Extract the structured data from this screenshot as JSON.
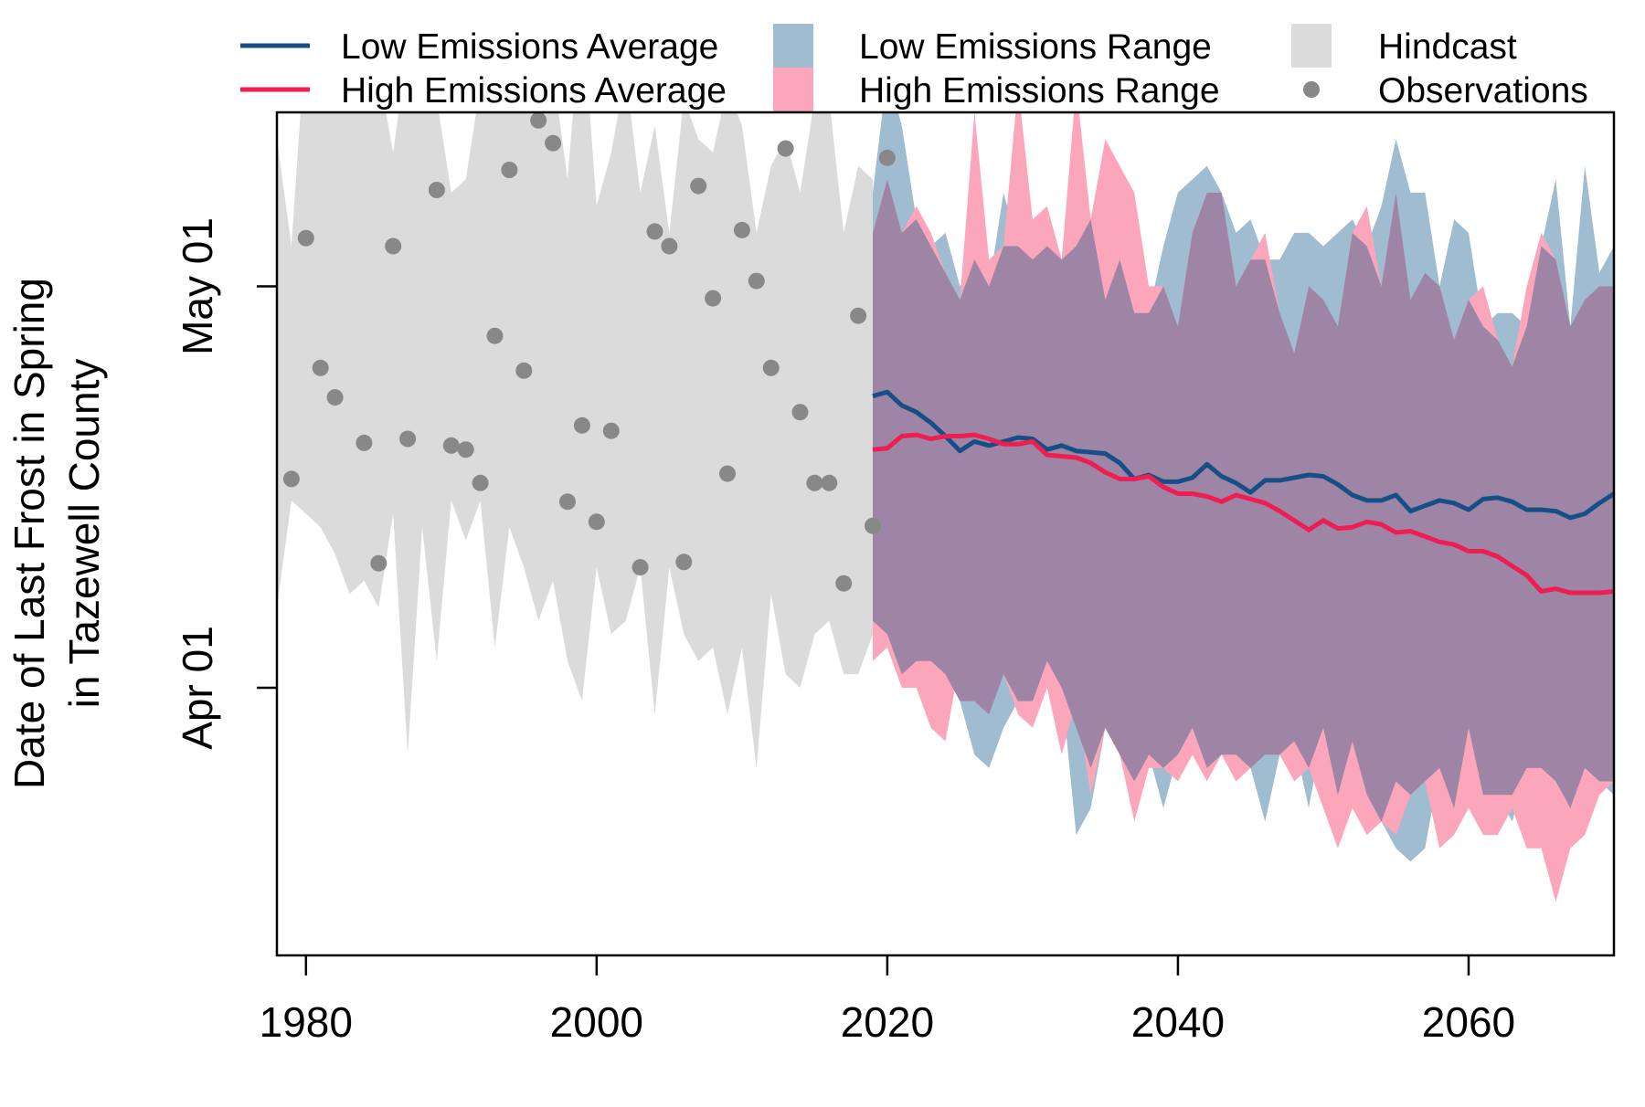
{
  "chart_data": {
    "type": "line",
    "ylabel_line1": "Date of Last Frost in Spring",
    "ylabel_line2": "in Tazewell County",
    "xlabel": "",
    "xlim": [
      1978,
      2070
    ],
    "ylim_day_of_year": [
      71,
      134
    ],
    "x_ticks": [
      1980,
      2000,
      2020,
      2040,
      2060
    ],
    "y_ticks": [
      {
        "label": "Apr 01",
        "day": 91
      },
      {
        "label": "May 01",
        "day": 121
      }
    ],
    "grid": false,
    "legend": {
      "placement": "top",
      "entries": [
        {
          "key": "low_avg",
          "label": "Low Emissions Average",
          "symbol": "line",
          "color": "#164f86"
        },
        {
          "key": "high_avg",
          "label": "High Emissions Average",
          "symbol": "line",
          "color": "#ee1d52"
        },
        {
          "key": "low_range",
          "label": "Low Emissions Range",
          "symbol": "fill",
          "color": "#9fbcd1"
        },
        {
          "key": "high_range",
          "label": "High Emissions Range",
          "symbol": "fill",
          "color": "#fca6bb"
        },
        {
          "key": "hindcast",
          "label": "Hindcast",
          "symbol": "fill",
          "color": "#dbdbdb"
        },
        {
          "key": "obs",
          "label": "Observations",
          "symbol": "point",
          "color": "#888888"
        }
      ]
    },
    "colors": {
      "low": "#164f86",
      "high": "#ee1d52",
      "low_range": "#9fbcd1",
      "high_range": "#fca6bb",
      "overlap": "#9e85a6",
      "hindcast": "#dbdbdb",
      "obs": "#888888"
    },
    "hindcast_range": {
      "x": [
        1978,
        1979,
        1980,
        1981,
        1982,
        1983,
        1984,
        1985,
        1986,
        1987,
        1988,
        1989,
        1990,
        1991,
        1992,
        1993,
        1994,
        1995,
        1996,
        1997,
        1998,
        1999,
        2000,
        2001,
        2002,
        2003,
        2004,
        2005,
        2006,
        2007,
        2008,
        2009,
        2010,
        2011,
        2012,
        2013,
        2014,
        2015,
        2016,
        2017,
        2018,
        2019
      ],
      "upper": [
        132,
        124,
        140,
        134,
        136,
        137,
        135,
        137,
        131,
        139,
        138,
        135,
        128,
        129,
        136,
        139,
        137,
        134,
        134,
        137,
        129,
        142,
        127,
        131,
        137,
        128,
        133,
        125,
        135,
        132,
        131,
        136,
        133,
        125,
        130,
        132,
        128,
        135,
        135,
        125,
        130,
        129
      ],
      "lower": [
        97,
        105,
        104,
        103,
        101,
        98,
        99,
        97,
        104,
        86,
        103,
        93,
        105,
        102,
        105,
        94,
        103,
        100,
        96,
        99,
        93,
        90,
        100,
        95,
        96,
        100,
        89,
        100,
        95,
        93,
        94,
        89,
        94,
        85,
        98,
        92,
        91,
        95,
        96,
        92,
        92,
        95
      ]
    },
    "low_range": {
      "x": [
        2019,
        2020,
        2021,
        2022,
        2023,
        2024,
        2025,
        2026,
        2027,
        2028,
        2029,
        2030,
        2031,
        2032,
        2033,
        2034,
        2035,
        2036,
        2037,
        2038,
        2039,
        2040,
        2041,
        2042,
        2043,
        2044,
        2045,
        2046,
        2047,
        2048,
        2049,
        2050,
        2051,
        2052,
        2053,
        2054,
        2055,
        2056,
        2057,
        2058,
        2059,
        2060,
        2061,
        2062,
        2063,
        2064,
        2065,
        2066,
        2067,
        2068,
        2069,
        2070
      ],
      "upper": [
        128,
        137,
        133,
        126,
        124,
        125,
        121,
        123,
        121,
        128,
        124,
        123,
        125,
        123,
        124,
        126,
        120,
        123,
        119,
        119,
        124,
        128,
        129,
        130,
        128,
        125,
        126,
        123,
        123,
        125,
        125,
        124,
        125,
        126,
        124,
        127,
        132,
        128,
        128,
        121,
        126,
        125,
        118,
        119,
        119,
        118,
        124,
        129,
        118,
        130,
        122,
        124
      ],
      "lower": [
        96,
        95,
        92,
        93,
        93,
        92,
        90,
        86,
        85,
        88,
        90,
        90,
        93,
        91,
        80,
        82,
        88,
        86,
        84,
        86,
        82,
        86,
        88,
        85,
        86,
        86,
        85,
        81,
        86,
        87,
        82,
        88,
        83,
        87,
        83,
        81,
        79,
        78,
        79,
        85,
        82,
        88,
        83,
        83,
        81,
        85,
        85,
        84,
        82,
        85,
        84,
        83
      ]
    },
    "high_range": {
      "x": [
        2019,
        2020,
        2021,
        2022,
        2023,
        2024,
        2025,
        2026,
        2027,
        2028,
        2029,
        2030,
        2031,
        2032,
        2033,
        2034,
        2035,
        2036,
        2037,
        2038,
        2039,
        2040,
        2041,
        2042,
        2043,
        2044,
        2045,
        2046,
        2047,
        2048,
        2049,
        2050,
        2051,
        2052,
        2053,
        2054,
        2055,
        2056,
        2057,
        2058,
        2059,
        2060,
        2061,
        2062,
        2063,
        2064,
        2065,
        2066,
        2067,
        2068,
        2069,
        2070
      ],
      "upper": [
        125,
        129,
        125,
        127,
        125,
        122,
        120,
        134,
        123,
        124,
        136,
        126,
        127,
        123,
        136,
        126,
        132,
        130,
        128,
        121,
        121,
        118,
        125,
        128,
        128,
        121,
        123,
        125,
        119,
        116,
        121,
        120,
        118,
        125,
        127,
        121,
        128,
        120,
        122,
        121,
        117,
        120,
        121,
        117,
        115,
        121,
        125,
        123,
        118,
        120,
        121,
        121
      ],
      "lower": [
        93,
        94,
        91,
        91,
        88,
        87,
        93,
        92,
        90,
        92,
        89,
        88,
        91,
        86,
        90,
        83,
        88,
        86,
        81,
        85,
        85,
        84,
        86,
        84,
        86,
        84,
        85,
        86,
        86,
        84,
        85,
        82,
        79,
        82,
        80,
        81,
        80,
        83,
        84,
        79,
        80,
        82,
        80,
        80,
        82,
        79,
        79,
        75,
        79,
        80,
        83,
        84
      ]
    },
    "overlap_range": {
      "x": [
        2019,
        2020,
        2021,
        2022,
        2023,
        2024,
        2025,
        2026,
        2027,
        2028,
        2029,
        2030,
        2031,
        2032,
        2033,
        2034,
        2035,
        2036,
        2037,
        2038,
        2039,
        2040,
        2041,
        2042,
        2043,
        2044,
        2045,
        2046,
        2047,
        2048,
        2049,
        2050,
        2051,
        2052,
        2053,
        2054,
        2055,
        2056,
        2057,
        2058,
        2059,
        2060,
        2061,
        2062,
        2063,
        2064,
        2065,
        2066,
        2067,
        2068,
        2069,
        2070
      ],
      "upper": [
        125,
        129,
        125,
        126,
        124,
        122,
        120,
        123,
        121,
        124,
        124,
        123,
        124,
        123,
        124,
        126,
        120,
        123,
        119,
        119,
        121,
        118,
        125,
        128,
        128,
        121,
        123,
        123,
        119,
        116,
        121,
        120,
        118,
        125,
        124,
        121,
        128,
        120,
        122,
        121,
        117,
        120,
        118,
        117,
        115,
        118,
        124,
        123,
        118,
        120,
        121,
        121
      ],
      "lower": [
        96,
        95,
        92,
        93,
        93,
        92,
        90,
        90,
        89,
        92,
        90,
        90,
        93,
        91,
        88,
        85,
        88,
        86,
        84,
        86,
        85,
        86,
        88,
        85,
        86,
        86,
        85,
        86,
        86,
        87,
        85,
        88,
        83,
        87,
        83,
        81,
        84,
        83,
        84,
        85,
        82,
        88,
        83,
        83,
        83,
        85,
        85,
        84,
        82,
        85,
        84,
        84
      ]
    },
    "series": [
      {
        "name": "Low Emissions Average",
        "color": "#164f86",
        "x": [
          2019,
          2020,
          2021,
          2022,
          2023,
          2024,
          2025,
          2026,
          2027,
          2028,
          2029,
          2030,
          2031,
          2032,
          2033,
          2034,
          2035,
          2036,
          2037,
          2038,
          2039,
          2040,
          2041,
          2042,
          2043,
          2044,
          2045,
          2046,
          2047,
          2048,
          2049,
          2050,
          2051,
          2052,
          2053,
          2054,
          2055,
          2056,
          2057,
          2058,
          2059,
          2060,
          2061,
          2062,
          2063,
          2064,
          2065,
          2066,
          2067,
          2068,
          2069,
          2070
        ],
        "values": [
          112.8,
          113.1,
          112.1,
          111.6,
          110.8,
          109.8,
          108.7,
          109.4,
          109.1,
          109.4,
          109.7,
          109.6,
          108.8,
          109.1,
          108.7,
          108.6,
          108.5,
          107.8,
          106.6,
          106.9,
          106.4,
          106.4,
          106.7,
          107.7,
          106.8,
          106.3,
          105.6,
          106.5,
          106.5,
          106.7,
          106.9,
          106.8,
          106.2,
          105.4,
          105.0,
          105.0,
          105.4,
          104.2,
          104.6,
          105.0,
          104.8,
          104.3,
          105.1,
          105.2,
          104.9,
          104.3,
          104.3,
          104.2,
          103.7,
          104.0,
          104.8,
          105.5
        ]
      },
      {
        "name": "High Emissions Average",
        "color": "#ee1d52",
        "x": [
          2019,
          2020,
          2021,
          2022,
          2023,
          2024,
          2025,
          2026,
          2027,
          2028,
          2029,
          2030,
          2031,
          2032,
          2033,
          2034,
          2035,
          2036,
          2037,
          2038,
          2039,
          2040,
          2041,
          2042,
          2043,
          2044,
          2045,
          2046,
          2047,
          2048,
          2049,
          2050,
          2051,
          2052,
          2053,
          2054,
          2055,
          2056,
          2057,
          2058,
          2059,
          2060,
          2061,
          2062,
          2063,
          2064,
          2065,
          2066,
          2067,
          2068,
          2069,
          2070
        ],
        "values": [
          108.8,
          108.9,
          109.8,
          109.9,
          109.6,
          109.8,
          109.8,
          109.9,
          109.6,
          109.2,
          109.2,
          109.4,
          108.4,
          108.3,
          108.2,
          107.8,
          107.1,
          106.6,
          106.6,
          106.8,
          106.0,
          105.5,
          105.5,
          105.3,
          104.9,
          105.4,
          105.1,
          104.8,
          104.2,
          103.5,
          102.8,
          103.5,
          102.9,
          103.0,
          103.4,
          103.2,
          102.6,
          102.7,
          102.3,
          101.9,
          101.7,
          101.2,
          101.2,
          100.8,
          100.1,
          99.4,
          98.2,
          98.4,
          98.1,
          98.1,
          98.1,
          98.2
        ]
      }
    ],
    "observations": {
      "x": [
        1979,
        1980,
        1981,
        1982,
        1984,
        1985,
        1986,
        1987,
        1988,
        1989,
        1990,
        1991,
        1992,
        1993,
        1994,
        1995,
        1996,
        1997,
        1998,
        1999,
        2000,
        2001,
        2002,
        2003,
        2004,
        2005,
        2006,
        2007,
        2008,
        2009,
        2010,
        2011,
        2012,
        2013,
        2014,
        2015,
        2016,
        2017,
        2018,
        2019,
        2020
      ],
      "values": [
        106.6,
        124.6,
        114.9,
        112.7,
        109.3,
        100.3,
        124.0,
        109.6,
        140.3,
        128.2,
        109.1,
        108.8,
        106.3,
        117.3,
        129.7,
        114.7,
        133.4,
        131.7,
        104.9,
        110.6,
        103.4,
        110.2,
        141.5,
        100.0,
        125.1,
        124.0,
        100.4,
        128.5,
        120.1,
        107.0,
        125.2,
        121.4,
        114.9,
        131.3,
        111.6,
        106.3,
        106.3,
        98.8,
        118.8,
        103.1,
        130.6
      ]
    }
  }
}
